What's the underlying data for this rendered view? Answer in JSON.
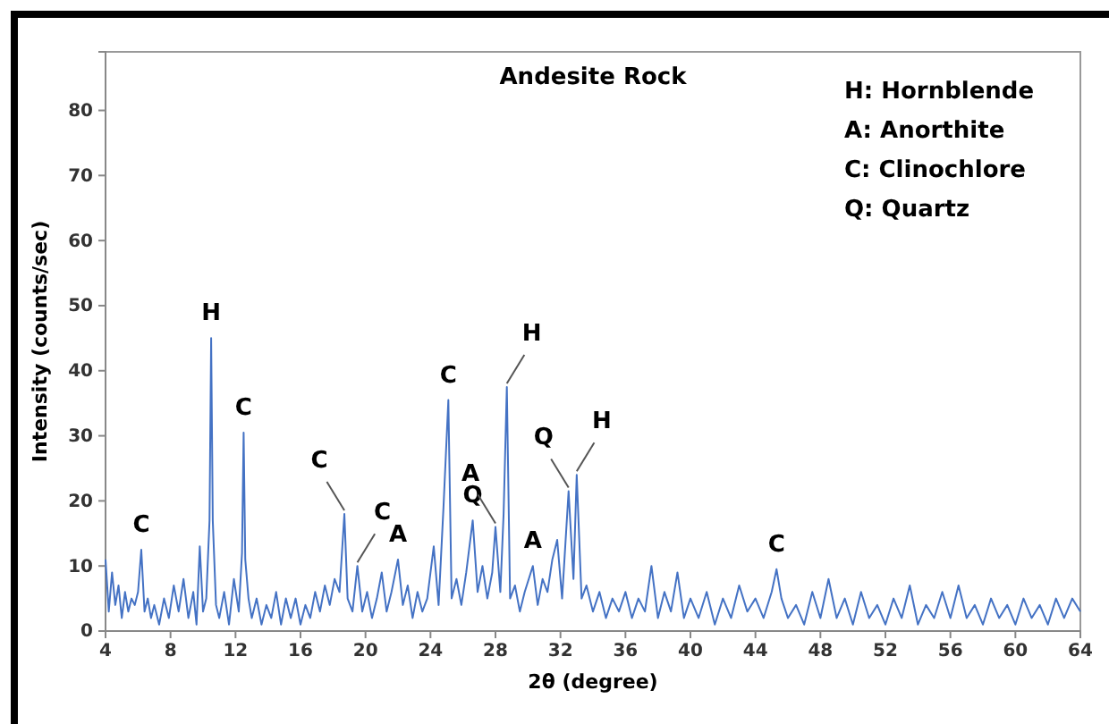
{
  "chart_data": {
    "type": "line",
    "title": "Andesite Rock",
    "xlabel": "2θ (degree)",
    "ylabel": "Intensity (counts/sec)",
    "xlim": [
      4,
      64
    ],
    "xticks": [
      4,
      8,
      12,
      16,
      20,
      24,
      28,
      32,
      36,
      40,
      44,
      48,
      52,
      56,
      60,
      64
    ],
    "ylim": [
      0,
      89
    ],
    "yticks": [
      0,
      10,
      20,
      30,
      40,
      50,
      60,
      70,
      80
    ],
    "grid": false,
    "series": [
      {
        "color": "#4472c4",
        "x": [
          4,
          4.2,
          4.4,
          4.6,
          4.8,
          5,
          5.2,
          5.4,
          5.6,
          5.8,
          6,
          6.2,
          6.4,
          6.6,
          6.8,
          7,
          7.3,
          7.6,
          7.9,
          8.2,
          8.5,
          8.8,
          9.1,
          9.4,
          9.6,
          9.8,
          10,
          10.2,
          10.4,
          10.5,
          10.6,
          10.8,
          11,
          11.3,
          11.6,
          11.9,
          12.2,
          12.4,
          12.5,
          12.6,
          12.8,
          13,
          13.3,
          13.6,
          13.9,
          14.2,
          14.5,
          14.8,
          15.1,
          15.4,
          15.7,
          16,
          16.3,
          16.6,
          16.9,
          17.2,
          17.5,
          17.8,
          18.1,
          18.4,
          18.7,
          18.9,
          19.2,
          19.5,
          19.8,
          20.1,
          20.4,
          20.7,
          21,
          21.3,
          21.6,
          22,
          22.3,
          22.6,
          22.9,
          23.2,
          23.5,
          23.8,
          24.2,
          24.5,
          24.8,
          25.1,
          25.3,
          25.6,
          25.9,
          26.2,
          26.6,
          26.9,
          27.2,
          27.5,
          27.8,
          28,
          28.3,
          28.5,
          28.7,
          28.9,
          29.2,
          29.5,
          29.8,
          30.3,
          30.6,
          30.9,
          31.2,
          31.5,
          31.8,
          32.1,
          32.5,
          32.8,
          33,
          33.3,
          33.6,
          34,
          34.4,
          34.8,
          35.2,
          35.6,
          36,
          36.4,
          36.8,
          37.2,
          37.6,
          38,
          38.4,
          38.8,
          39.2,
          39.6,
          40,
          40.5,
          41,
          41.5,
          42,
          42.5,
          43,
          43.5,
          44,
          44.5,
          45,
          45.3,
          45.6,
          46,
          46.5,
          47,
          47.5,
          48,
          48.5,
          49,
          49.5,
          50,
          50.5,
          51,
          51.5,
          52,
          52.5,
          53,
          53.5,
          54,
          54.5,
          55,
          55.5,
          56,
          56.5,
          57,
          57.5,
          58,
          58.5,
          59,
          59.5,
          60,
          60.5,
          61,
          61.5,
          62,
          62.5,
          63,
          63.5,
          64
        ],
        "values": [
          11,
          3,
          9,
          4,
          7,
          2,
          6,
          3,
          5,
          4,
          6,
          12.5,
          3,
          5,
          2,
          4,
          1,
          5,
          2,
          7,
          3,
          8,
          2,
          6,
          1,
          13,
          3,
          5,
          17,
          45,
          17,
          4,
          2,
          6,
          1,
          8,
          3,
          12,
          30.5,
          11,
          5,
          2,
          5,
          1,
          4,
          2,
          6,
          1,
          5,
          2,
          5,
          1,
          4,
          2,
          6,
          3,
          7,
          4,
          8,
          6,
          18,
          5,
          3,
          10,
          3,
          6,
          2,
          5,
          9,
          3,
          6,
          11,
          4,
          7,
          2,
          6,
          3,
          5,
          13,
          4,
          19,
          35.5,
          5,
          8,
          4,
          9,
          17,
          6,
          10,
          5,
          9,
          16,
          6,
          18,
          37.5,
          5,
          7,
          3,
          6,
          10,
          4,
          8,
          6,
          11,
          14,
          5,
          21.5,
          8,
          24,
          5,
          7,
          3,
          6,
          2,
          5,
          3,
          6,
          2,
          5,
          3,
          10,
          2,
          6,
          3,
          9,
          2,
          5,
          2,
          6,
          1,
          5,
          2,
          7,
          3,
          5,
          2,
          6,
          9.5,
          5,
          2,
          4,
          1,
          6,
          2,
          8,
          2,
          5,
          1,
          6,
          2,
          4,
          1,
          5,
          2,
          7,
          1,
          4,
          2,
          6,
          2,
          7,
          2,
          4,
          1,
          5,
          2,
          4,
          1,
          5,
          2,
          4,
          1,
          5,
          2,
          5,
          3
        ]
      }
    ],
    "annotations": [
      {
        "text": "C",
        "x": 6.2,
        "y": 12.5
      },
      {
        "text": "H",
        "x": 10.5,
        "y": 45
      },
      {
        "text": "C",
        "x": 12.5,
        "y": 30.5
      },
      {
        "text": "C",
        "x": 18.7,
        "y": 18
      },
      {
        "text": "C",
        "x": 19.5,
        "y": 10
      },
      {
        "text": "A",
        "x": 22,
        "y": 11
      },
      {
        "text": "C",
        "x": 25.1,
        "y": 35.5
      },
      {
        "text": "Q",
        "x": 26.6,
        "y": 17
      },
      {
        "text": "A",
        "x": 28,
        "y": 16
      },
      {
        "text": "H",
        "x": 28.7,
        "y": 37.5
      },
      {
        "text": "A",
        "x": 30.3,
        "y": 10
      },
      {
        "text": "Q",
        "x": 32.5,
        "y": 21.5
      },
      {
        "text": "H",
        "x": 33,
        "y": 24
      },
      {
        "text": "C",
        "x": 45.3,
        "y": 9.5
      },
      "H: Hornblende",
      "A: Anorthite",
      "C: Clinochlore",
      "Q: Quartz"
    ]
  }
}
